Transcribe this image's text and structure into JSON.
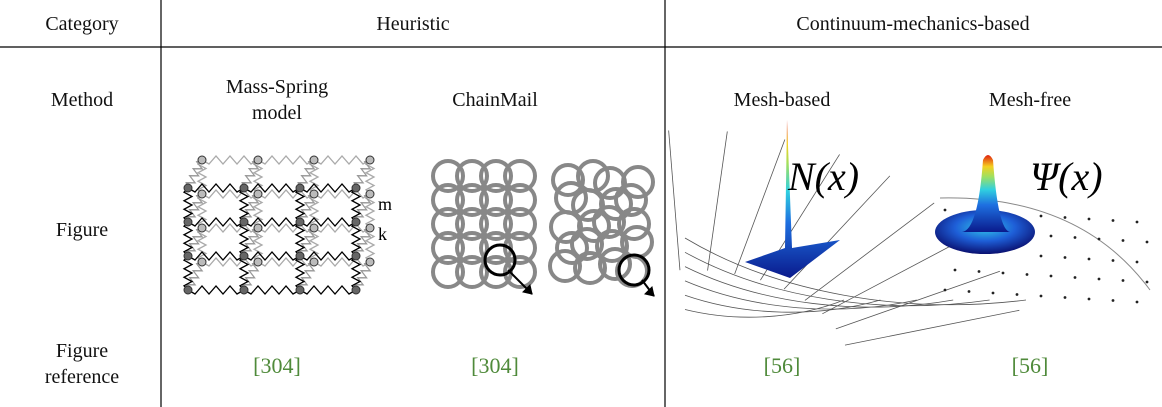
{
  "table": {
    "header": [
      "Category",
      "Heuristic",
      "Continuum-mechanics-based"
    ],
    "rows": [
      {
        "label": "Method",
        "cells": [
          "Mass-Spring model",
          "ChainMail",
          "Mesh-based",
          "Mesh-free"
        ]
      },
      {
        "label": "Figure",
        "mass_spring_labels": [
          "m",
          "k"
        ],
        "mesh_based_label": "N(x)",
        "mesh_free_label": "Ψ(x)"
      },
      {
        "label": "Figure reference",
        "cells": [
          "[304]",
          "[304]",
          "[56]",
          "[56]"
        ]
      }
    ]
  }
}
